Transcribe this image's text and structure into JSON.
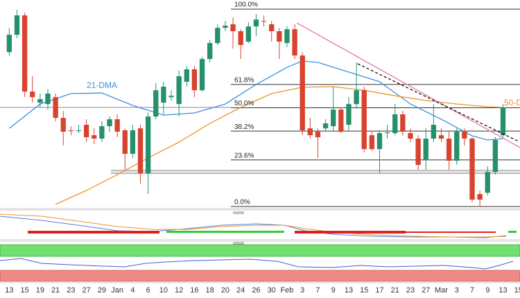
{
  "chart_data": {
    "type": "candlestick",
    "xlim": [
      -1.2,
      66.2
    ],
    "ylim": [
      -0.7,
      104.6
    ],
    "xticks": [
      {
        "value": 0,
        "label": "13"
      },
      {
        "value": 2,
        "label": "15"
      },
      {
        "value": 4,
        "label": "19"
      },
      {
        "value": 6,
        "label": "21"
      },
      {
        "value": 8,
        "label": "23"
      },
      {
        "value": 10,
        "label": "27"
      },
      {
        "value": 12,
        "label": "29"
      },
      {
        "value": 14,
        "label": "Jan"
      },
      {
        "value": 16,
        "label": "4"
      },
      {
        "value": 18,
        "label": "6"
      },
      {
        "value": 20,
        "label": "10"
      },
      {
        "value": 22,
        "label": "12"
      },
      {
        "value": 24,
        "label": "16"
      },
      {
        "value": 26,
        "label": "18"
      },
      {
        "value": 28,
        "label": "20"
      },
      {
        "value": 30,
        "label": "24"
      },
      {
        "value": 32,
        "label": "26"
      },
      {
        "value": 34,
        "label": "30"
      },
      {
        "value": 36,
        "label": "Feb"
      },
      {
        "value": 38,
        "label": "3"
      },
      {
        "value": 40,
        "label": "7"
      },
      {
        "value": 42,
        "label": "9"
      },
      {
        "value": 44,
        "label": "13"
      },
      {
        "value": 46,
        "label": "15"
      },
      {
        "value": 48,
        "label": "17"
      },
      {
        "value": 50,
        "label": "21"
      },
      {
        "value": 52,
        "label": "23"
      },
      {
        "value": 54,
        "label": "27"
      },
      {
        "value": 56,
        "label": "Mar"
      },
      {
        "value": 58,
        "label": "3"
      },
      {
        "value": 60,
        "label": "7"
      },
      {
        "value": 62,
        "label": "9"
      },
      {
        "value": 64,
        "label": "13"
      },
      {
        "value": 66,
        "label": "15"
      }
    ],
    "open": [
      78.2,
      87.0,
      96.8,
      58.2,
      52.6,
      51.9,
      55.4,
      44.9,
      38.6,
      38.2,
      41.4,
      36.1,
      34.4,
      40.7,
      44.2,
      38.6,
      26.7,
      39.6,
      16.8,
      45.6,
      52.6,
      55.4,
      51.9,
      63.2,
      69.5,
      58.9,
      74.7,
      82.8,
      90.5,
      92.3,
      88.8,
      83.5,
      91.2,
      94.0,
      92.3,
      88.8,
      82.8,
      89.8,
      76.5,
      39.6,
      37.9,
      39.6,
      40.7,
      49.1,
      41.4,
      51.9,
      58.9,
      36.1,
      29.1,
      37.2,
      37.2,
      46.7,
      37.2,
      34.4,
      23.9,
      34.4,
      36.1,
      34.4,
      23.2,
      37.9,
      34.4,
      6.3,
      7.0,
      17.5,
      36.1
    ],
    "high": [
      90.5,
      99.6,
      98.2,
      66.0,
      57.2,
      59.6,
      57.2,
      48.4,
      40.7,
      41.4,
      44.2,
      39.6,
      43.2,
      45.6,
      46.7,
      39.6,
      41.4,
      41.4,
      47.7,
      62.5,
      63.2,
      58.9,
      68.8,
      71.2,
      71.2,
      75.8,
      84.2,
      92.3,
      94.0,
      95.8,
      89.8,
      93.3,
      97.5,
      96.8,
      94.0,
      90.5,
      91.2,
      92.3,
      78.2,
      44.9,
      39.6,
      44.2,
      60.7,
      50.2,
      55.4,
      73.0,
      60.7,
      37.9,
      38.6,
      41.4,
      51.9,
      48.4,
      39.6,
      36.1,
      39.6,
      51.9,
      39.6,
      37.9,
      39.6,
      39.6,
      35.1,
      8.1,
      20.4,
      35.1,
      51.9
    ],
    "low": [
      76.5,
      85.3,
      55.4,
      52.6,
      50.2,
      49.1,
      43.2,
      30.9,
      36.1,
      37.2,
      32.6,
      31.6,
      32.6,
      37.9,
      35.1,
      18.6,
      24.6,
      11.6,
      6.3,
      44.2,
      46.7,
      53.7,
      45.6,
      60.7,
      55.4,
      58.2,
      73.0,
      81.8,
      88.8,
      80.0,
      74.7,
      82.8,
      86.3,
      91.2,
      83.5,
      74.7,
      80.7,
      74.7,
      36.1,
      34.4,
      24.6,
      37.9,
      37.9,
      37.2,
      38.6,
      50.2,
      27.4,
      28.1,
      16.8,
      34.4,
      36.1,
      36.1,
      32.6,
      18.6,
      18.6,
      32.6,
      32.6,
      18.6,
      21.1,
      30.9,
      2.1,
      0.0,
      5.6,
      16.1,
      35.1
    ],
    "close": [
      87.0,
      96.8,
      58.2,
      55.4,
      54.4,
      57.2,
      44.9,
      37.9,
      38.2,
      38.6,
      35.1,
      34.4,
      40.7,
      44.2,
      37.9,
      26.7,
      38.6,
      16.8,
      45.6,
      58.9,
      60.7,
      56.1,
      66.0,
      69.5,
      58.9,
      74.7,
      82.8,
      90.5,
      91.6,
      88.8,
      81.8,
      91.2,
      94.7,
      93.8,
      88.8,
      83.5,
      89.8,
      76.5,
      38.6,
      36.1,
      35.1,
      42.1,
      49.1,
      37.9,
      51.9,
      58.9,
      29.1,
      29.1,
      37.2,
      37.5,
      46.7,
      37.9,
      34.4,
      21.1,
      34.4,
      41.4,
      34.4,
      23.2,
      37.9,
      34.4,
      3.5,
      3.5,
      17.5,
      33.7,
      50.2
    ],
    "up_color": "#25906c",
    "down_color": "#d8432f",
    "moving_averages": [
      {
        "name": "21-DMA",
        "color": "#3b8fe0",
        "x": [
          0,
          4,
          8,
          12,
          16,
          20,
          24,
          28,
          32,
          36,
          38,
          40,
          44,
          48,
          52,
          56,
          60,
          62,
          64
        ],
        "values": [
          39.6,
          51.9,
          57.2,
          57.5,
          51.2,
          46.3,
          47.4,
          51.9,
          61.8,
          70.5,
          73.7,
          73.0,
          68.1,
          63.2,
          51.9,
          44.2,
          35.8,
          33.7,
          34.4
        ]
      },
      {
        "name": "50-D",
        "color": "#ef922a",
        "x": [
          6,
          10,
          14,
          18,
          22,
          26,
          30,
          34,
          38,
          42,
          46,
          50,
          54,
          58,
          62,
          64
        ],
        "values": [
          1.1,
          8.1,
          16.1,
          24.6,
          32.6,
          42.1,
          50.2,
          57.2,
          60.4,
          60.7,
          58.9,
          56.1,
          53.7,
          51.9,
          50.5,
          50.2
        ]
      }
    ],
    "fib_levels": [
      {
        "value": 100,
        "label": "100.0%"
      },
      {
        "value": 61.8,
        "label": "61.8%"
      },
      {
        "value": 50,
        "label": "50.0%"
      },
      {
        "value": 38.2,
        "label": "38.2%"
      },
      {
        "value": 23.6,
        "label": "23.6%"
      },
      {
        "value": 0,
        "label": "0.0%"
      }
    ],
    "fib_color": "#333333"
  }
}
